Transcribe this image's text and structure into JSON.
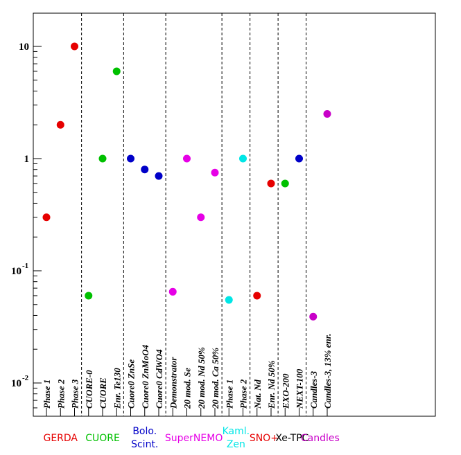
{
  "chart_data": {
    "type": "scatter",
    "title": "",
    "xlabel": "",
    "ylabel": "",
    "yscale": "log",
    "ylim": [
      0.005,
      20
    ],
    "yticks": [
      {
        "mantissa": "10",
        "exp": "",
        "value": 10
      },
      {
        "mantissa": "1",
        "exp": "",
        "value": 1
      },
      {
        "mantissa": "10",
        "exp": "-1",
        "value": 0.1
      },
      {
        "mantissa": "10",
        "exp": "-2",
        "value": 0.01
      }
    ],
    "groups": [
      {
        "name": "GERDA",
        "label_lines": [
          "GERDA"
        ],
        "color": "#e60000",
        "points": [
          {
            "label": "Phase 1",
            "value": 0.3
          },
          {
            "label": "Phase 2",
            "value": 2.0
          },
          {
            "label": "Phase 3",
            "value": 10.0
          }
        ]
      },
      {
        "name": "CUORE",
        "label_lines": [
          "CUORE"
        ],
        "color": "#00c000",
        "points": [
          {
            "label": "CUORE-0",
            "value": 0.06
          },
          {
            "label": "CUORE",
            "value": 1.0
          },
          {
            "label": "Enr. Te130",
            "value": 6.0
          }
        ]
      },
      {
        "name": "Bolo. Scint.",
        "label_lines": [
          "Bolo.",
          "Scint."
        ],
        "color": "#0000c8",
        "points": [
          {
            "label": "Cuore0 ZnSe",
            "value": 1.0
          },
          {
            "label": "Cuore0 ZnMoO4",
            "value": 0.8
          },
          {
            "label": "Cuore0 CdWO4",
            "value": 0.7
          }
        ]
      },
      {
        "name": "SuperNEMO",
        "label_lines": [
          "SuperNEMO"
        ],
        "color": "#e600e6",
        "points": [
          {
            "label": "Demonstrator",
            "value": 0.065
          },
          {
            "label": "20 mod. Se",
            "value": 1.0
          },
          {
            "label": "20 mod. Nd 50%",
            "value": 0.3
          },
          {
            "label": "20 mod. Ca 50%",
            "value": 0.75
          }
        ]
      },
      {
        "name": "Kaml. Zen",
        "label_lines": [
          "Kaml.",
          "Zen"
        ],
        "color": "#00e6e6",
        "points": [
          {
            "label": "Phase 1",
            "value": 0.055
          },
          {
            "label": "Phase 2",
            "value": 1.0
          }
        ]
      },
      {
        "name": "SNO+",
        "label_lines": [
          "SNO+"
        ],
        "color": "#e60000",
        "points": [
          {
            "label": "Nat. Nd",
            "value": 0.06
          },
          {
            "label": "Enr. Nd 50%",
            "value": 0.6
          }
        ]
      },
      {
        "name": "Xe-TPC",
        "label_lines": [
          "Xe-TPC"
        ],
        "color": "#000000",
        "points": [
          {
            "label": "EXO-200",
            "value": 0.6,
            "color": "#00c000"
          },
          {
            "label": "NEXT-100",
            "value": 1.0,
            "color": "#0000c8"
          }
        ]
      },
      {
        "name": "Candles",
        "label_lines": [
          "Candles"
        ],
        "color": "#c800c8",
        "points": [
          {
            "label": "Candles-3",
            "value": 0.039
          },
          {
            "label": "Candles-3, 13% enr.",
            "value": 2.5
          }
        ]
      }
    ]
  }
}
